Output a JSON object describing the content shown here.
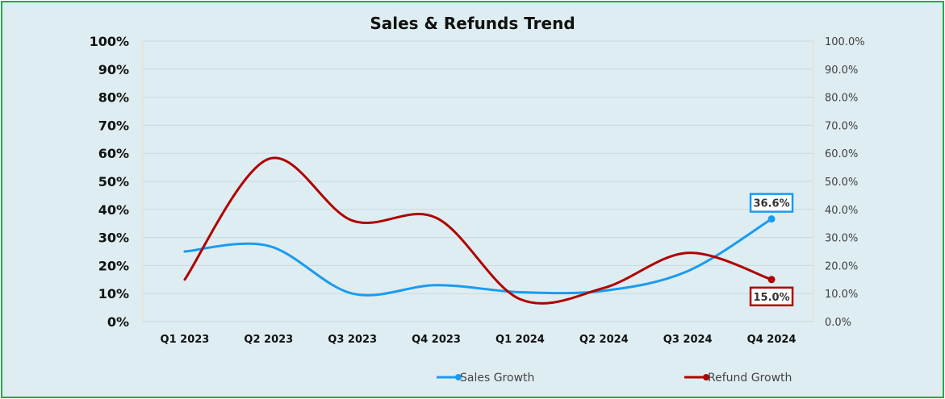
{
  "chart_data": {
    "type": "line",
    "title": "Sales & Refunds Trend",
    "categories": [
      "Q1 2023",
      "Q2 2023",
      "Q3 2023",
      "Q4 2023",
      "Q1 2024",
      "Q2 2024",
      "Q3 2024",
      "Q4 2024"
    ],
    "series": [
      {
        "name": "Sales Growth",
        "values": [
          25,
          27,
          10,
          13,
          10.5,
          11,
          18,
          36.6
        ],
        "color": "#1a9bf0",
        "axis": "left",
        "last_label": "36.6%"
      },
      {
        "name": "Refund Growth",
        "values": [
          15,
          58,
          36,
          37,
          8,
          12,
          24.5,
          15
        ],
        "color": "#b00000",
        "axis": "right",
        "last_label": "15.0%"
      }
    ],
    "y_left": {
      "min": 0,
      "max": 100,
      "ticks": [
        "0%",
        "10%",
        "20%",
        "30%",
        "40%",
        "50%",
        "60%",
        "70%",
        "80%",
        "90%",
        "100%"
      ]
    },
    "y_right": {
      "min": 0,
      "max": 100,
      "ticks": [
        "0.0%",
        "10.0%",
        "20.0%",
        "30.0%",
        "40.0%",
        "50.0%",
        "60.0%",
        "70.0%",
        "80.0%",
        "90.0%",
        "100.0%"
      ]
    },
    "grid": true,
    "legend_position": "bottom-right",
    "line_style": "smooth"
  }
}
